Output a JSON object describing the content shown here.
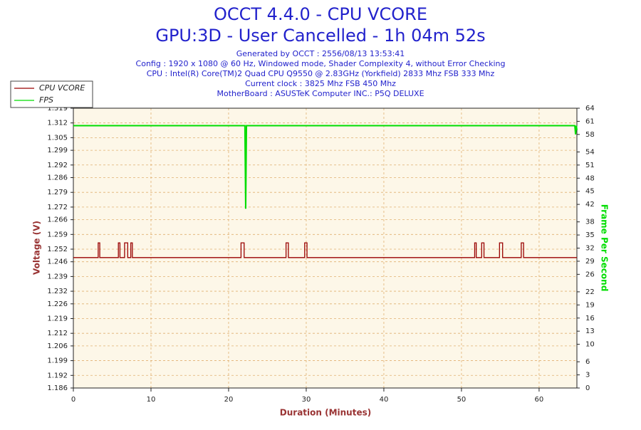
{
  "chart_data": {
    "type": "line",
    "title": "OCCT 4.4.0 - CPU VCORE",
    "subtitle": "GPU:3D - User Cancelled - 1h 04m 52s",
    "info": [
      "Generated by OCCT : 2556/08/13 13:53:41",
      "Config : 1920 x 1080 @ 60 Hz, Windowed mode, Shader Complexity 4, without Error Checking",
      "CPU : Intel(R) Core(TM)2 Quad CPU Q9550 @ 2.83GHz (Yorkfield) 2833 Mhz FSB 333 Mhz",
      "Current clock : 3825 Mhz FSB 450 Mhz",
      "MotherBoard : ASUSTeK Computer INC.: P5Q DELUXE"
    ],
    "x_label": "Duration (Minutes)",
    "y_label": "Voltage (V)",
    "y2_label": "Frame Per Second",
    "xlim": [
      0,
      64.87
    ],
    "xticks": [
      0,
      10,
      20,
      30,
      40,
      50,
      60
    ],
    "ylim": [
      1.186,
      1.319
    ],
    "yticks": [
      1.186,
      1.192,
      1.199,
      1.206,
      1.212,
      1.219,
      1.226,
      1.232,
      1.239,
      1.246,
      1.252,
      1.259,
      1.266,
      1.272,
      1.279,
      1.286,
      1.292,
      1.299,
      1.305,
      1.312,
      1.319
    ],
    "y2lim": [
      0,
      64
    ],
    "y2ticks": [
      0,
      3,
      6,
      10,
      13,
      16,
      19,
      22,
      26,
      29,
      32,
      35,
      38,
      42,
      45,
      48,
      51,
      54,
      58,
      61,
      64
    ],
    "grid": true,
    "legend": "top-left",
    "series": [
      {
        "name": "CPU VCORE",
        "color": "#990000",
        "x": [
          0,
          3.2,
          3.2,
          3.4,
          3.4,
          5.8,
          5.8,
          6.0,
          6.0,
          6.6,
          6.6,
          7.0,
          7.0,
          7.4,
          7.4,
          7.6,
          7.6,
          21.6,
          21.6,
          22.0,
          22.0,
          27.4,
          27.4,
          27.7,
          27.7,
          29.8,
          29.8,
          30.1,
          30.1,
          51.7,
          51.7,
          51.9,
          51.9,
          52.6,
          52.6,
          52.9,
          52.9,
          54.9,
          54.9,
          55.3,
          55.3,
          57.7,
          57.7,
          58.0,
          58.0,
          64.87
        ],
        "values": [
          1.248,
          1.248,
          1.255,
          1.255,
          1.248,
          1.248,
          1.255,
          1.255,
          1.248,
          1.248,
          1.255,
          1.255,
          1.248,
          1.248,
          1.255,
          1.255,
          1.248,
          1.248,
          1.255,
          1.255,
          1.248,
          1.248,
          1.255,
          1.255,
          1.248,
          1.248,
          1.255,
          1.255,
          1.248,
          1.248,
          1.255,
          1.255,
          1.248,
          1.248,
          1.255,
          1.255,
          1.248,
          1.248,
          1.255,
          1.255,
          1.248,
          1.248,
          1.255,
          1.255,
          1.248,
          1.248
        ]
      },
      {
        "name": "FPS",
        "color": "#00dd00",
        "axis": "y2",
        "x": [
          0,
          22.1,
          22.2,
          22.3,
          64.6,
          64.7,
          64.8,
          64.87
        ],
        "values": [
          60,
          60,
          41,
          60,
          60,
          58,
          60,
          59
        ]
      }
    ]
  }
}
